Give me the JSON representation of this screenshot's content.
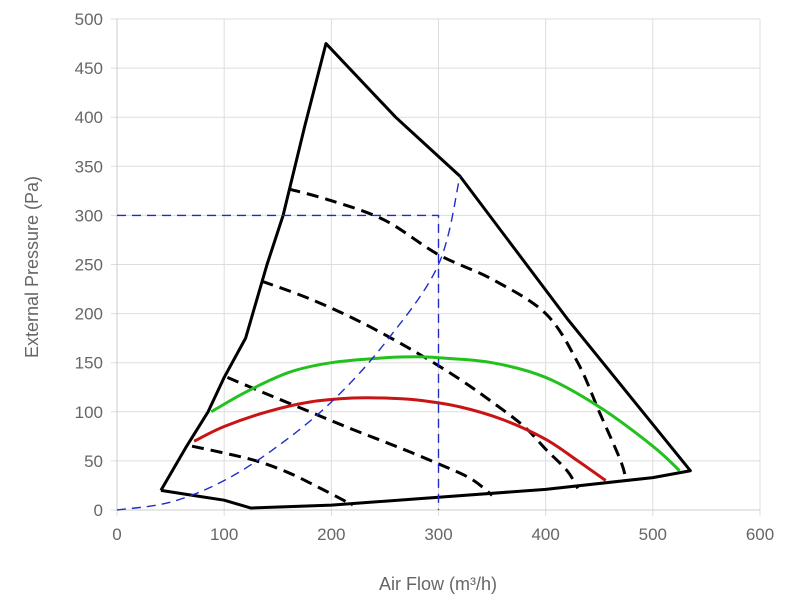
{
  "chart_data": {
    "type": "line",
    "title": "",
    "xlabel": "Air Flow (m³/h)",
    "ylabel": "External Pressure (Pa)",
    "xlim": [
      0,
      600
    ],
    "ylim": [
      0,
      500
    ],
    "x_ticks": [
      0,
      100,
      200,
      300,
      400,
      500,
      600
    ],
    "y_ticks": [
      0,
      50,
      100,
      150,
      200,
      250,
      300,
      350,
      400,
      450,
      500
    ],
    "grid": true,
    "legend": "none",
    "colors": {
      "envelope": "#000000",
      "speed_curve": "#000000",
      "green_curve": "#22c11d",
      "red_curve": "#c81414",
      "system_curve": "#1f2dc8",
      "guide": "#1f2dc8",
      "grid": "#dddddd",
      "text": "#666666"
    },
    "series": [
      {
        "style": "envelope",
        "points": [
          [
            41,
            20
          ],
          [
            70,
            15
          ],
          [
            100,
            10
          ],
          [
            125,
            2
          ],
          [
            200,
            5
          ],
          [
            300,
            13
          ],
          [
            400,
            21
          ],
          [
            500,
            33
          ],
          [
            535,
            40
          ],
          [
            420,
            195
          ],
          [
            320,
            340
          ],
          [
            260,
            400
          ],
          [
            195,
            475
          ],
          [
            175,
            390
          ],
          [
            155,
            300
          ],
          [
            140,
            250
          ],
          [
            120,
            175
          ],
          [
            100,
            135
          ],
          [
            85,
            100
          ],
          [
            65,
            65
          ],
          [
            41,
            20
          ]
        ]
      },
      {
        "style": "speed_curve",
        "points": [
          [
            160,
            327
          ],
          [
            200,
            315
          ],
          [
            250,
            295
          ],
          [
            300,
            260
          ],
          [
            350,
            235
          ],
          [
            400,
            200
          ],
          [
            430,
            150
          ],
          [
            450,
            100
          ],
          [
            470,
            50
          ],
          [
            475,
            30
          ]
        ]
      },
      {
        "style": "speed_curve",
        "points": [
          [
            135,
            233
          ],
          [
            180,
            215
          ],
          [
            230,
            190
          ],
          [
            280,
            160
          ],
          [
            320,
            133
          ],
          [
            350,
            110
          ],
          [
            380,
            85
          ],
          [
            400,
            62
          ],
          [
            420,
            40
          ],
          [
            430,
            22
          ]
        ]
      },
      {
        "style": "speed_curve",
        "points": [
          [
            103,
            135
          ],
          [
            140,
            118
          ],
          [
            180,
            100
          ],
          [
            220,
            82
          ],
          [
            260,
            65
          ],
          [
            300,
            47
          ],
          [
            330,
            32
          ],
          [
            350,
            15
          ]
        ]
      },
      {
        "style": "speed_curve",
        "points": [
          [
            70,
            65
          ],
          [
            100,
            58
          ],
          [
            130,
            50
          ],
          [
            160,
            38
          ],
          [
            190,
            22
          ],
          [
            220,
            5
          ]
        ]
      },
      {
        "style": "green_curve",
        "points": [
          [
            88,
            100
          ],
          [
            120,
            120
          ],
          [
            160,
            140
          ],
          [
            200,
            150
          ],
          [
            250,
            155
          ],
          [
            280,
            156
          ],
          [
            300,
            155
          ],
          [
            350,
            150
          ],
          [
            400,
            135
          ],
          [
            450,
            105
          ],
          [
            500,
            65
          ],
          [
            525,
            40
          ]
        ]
      },
      {
        "style": "red_curve",
        "points": [
          [
            72,
            70
          ],
          [
            100,
            85
          ],
          [
            140,
            100
          ],
          [
            180,
            110
          ],
          [
            220,
            114
          ],
          [
            250,
            114
          ],
          [
            280,
            112
          ],
          [
            320,
            105
          ],
          [
            360,
            92
          ],
          [
            400,
            72
          ],
          [
            430,
            50
          ],
          [
            456,
            30
          ]
        ]
      },
      {
        "style": "system_curve",
        "points": [
          [
            0,
            0
          ],
          [
            50,
            8
          ],
          [
            100,
            30
          ],
          [
            150,
            65
          ],
          [
            200,
            110
          ],
          [
            250,
            170
          ],
          [
            300,
            250
          ],
          [
            320,
            340
          ]
        ]
      },
      {
        "style": "guide",
        "points": [
          [
            0,
            300
          ],
          [
            300,
            300
          ],
          [
            300,
            0
          ]
        ]
      }
    ]
  }
}
